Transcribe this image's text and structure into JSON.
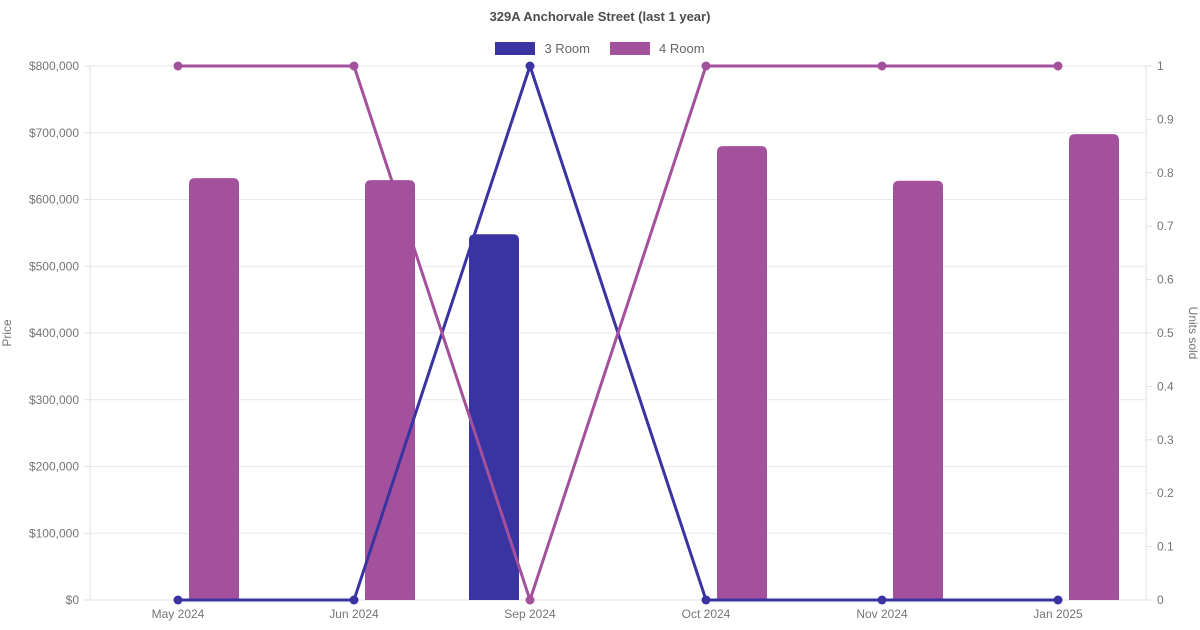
{
  "chart_data": {
    "type": "mixed-bar-line",
    "title": "329A Anchorvale Street (last 1 year)",
    "categories": [
      "May 2024",
      "Jun 2024",
      "Sep 2024",
      "Oct 2024",
      "Nov 2024",
      "Jan 2025"
    ],
    "axes": {
      "left": {
        "label": "Price",
        "min": 0,
        "max": 800000,
        "tick_step": 100000,
        "tick_labels": [
          "$0",
          "$100,000",
          "$200,000",
          "$300,000",
          "$400,000",
          "$500,000",
          "$600,000",
          "$700,000",
          "$800,000"
        ]
      },
      "right": {
        "label": "Units sold",
        "min": 0,
        "max": 1,
        "tick_step": 0.1,
        "tick_labels": [
          "0",
          "0.1",
          "0.2",
          "0.3",
          "0.4",
          "0.5",
          "0.6",
          "0.7",
          "0.8",
          "0.9",
          "1"
        ]
      }
    },
    "legend": {
      "position": "top",
      "items": [
        {
          "label": "3 Room",
          "color": "#3a34a3"
        },
        {
          "label": "4 Room",
          "color": "#a4519d"
        }
      ]
    },
    "series": [
      {
        "name": "3 Room",
        "color": "#3a34a3",
        "bar_prices": [
          null,
          null,
          548000,
          null,
          null,
          null
        ],
        "units_sold_line": [
          0,
          0,
          1,
          0,
          0,
          0
        ]
      },
      {
        "name": "4 Room",
        "color": "#a4519d",
        "bar_prices": [
          632000,
          629000,
          null,
          680000,
          628000,
          698000
        ],
        "units_sold_line": [
          1,
          1,
          0,
          1,
          1,
          1
        ]
      }
    ],
    "grid": "horizontal-only",
    "colors": {
      "grid_line": "#e9e9e9",
      "axis_line": "#e0e0e0",
      "tick_text": "#757575",
      "title_text": "#4d4d4d",
      "legend_text": "#666666",
      "background": "#ffffff"
    }
  }
}
